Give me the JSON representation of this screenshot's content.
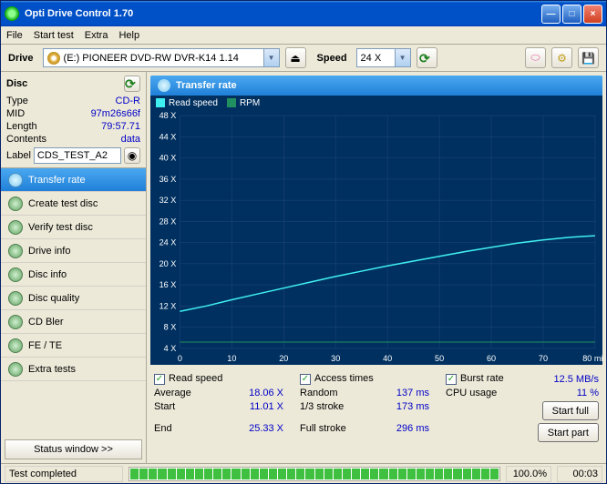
{
  "window": {
    "title": "Opti Drive Control 1.70"
  },
  "menu": {
    "file": "File",
    "start": "Start test",
    "extra": "Extra",
    "help": "Help"
  },
  "toolbar": {
    "drive_label": "Drive",
    "drive_value": "(E:)   PIONEER  DVD-RW   DVR-K14 1.14",
    "speed_label": "Speed",
    "speed_value": "24 X"
  },
  "disc": {
    "header": "Disc",
    "type_label": "Type",
    "type_value": "CD-R",
    "mid_label": "MID",
    "mid_value": "97m26s66f",
    "length_label": "Length",
    "length_value": "79:57.71",
    "contents_label": "Contents",
    "contents_value": "data",
    "label_label": "Label",
    "label_value": "CDS_TEST_A2"
  },
  "nav": {
    "items": [
      "Transfer rate",
      "Create test disc",
      "Verify test disc",
      "Drive info",
      "Disc info",
      "Disc quality",
      "CD Bler",
      "FE / TE",
      "Extra tests"
    ],
    "statuswin": "Status window >>"
  },
  "panel": {
    "title": "Transfer rate",
    "legend_read": "Read speed",
    "legend_rpm": "RPM"
  },
  "chart": {
    "type": "line",
    "x_axis": {
      "min": 0,
      "max": 80,
      "step": 10,
      "label_suffix": " min"
    },
    "y_axis": {
      "min": 4,
      "max": 48,
      "step": 4,
      "label_suffix": " X"
    },
    "background_color": "#003060",
    "grid_color": "#204878",
    "axis_text_color": "#ffffff",
    "series": [
      {
        "name": "Read speed",
        "color": "#40f0f0",
        "line_width": 1.5,
        "points": [
          [
            0,
            11.0
          ],
          [
            5,
            12.0
          ],
          [
            10,
            13.2
          ],
          [
            15,
            14.3
          ],
          [
            20,
            15.4
          ],
          [
            25,
            16.5
          ],
          [
            30,
            17.6
          ],
          [
            35,
            18.6
          ],
          [
            40,
            19.6
          ],
          [
            45,
            20.5
          ],
          [
            50,
            21.4
          ],
          [
            55,
            22.3
          ],
          [
            60,
            23.1
          ],
          [
            65,
            23.9
          ],
          [
            70,
            24.5
          ],
          [
            75,
            25.0
          ],
          [
            80,
            25.3
          ]
        ]
      },
      {
        "name": "RPM",
        "color": "#209060",
        "line_width": 1,
        "points": [
          [
            0,
            5.2
          ],
          [
            80,
            5.2
          ]
        ]
      }
    ]
  },
  "checks": {
    "read_speed": "Read speed",
    "access_times": "Access times",
    "burst_rate": "Burst rate",
    "burst_rate_value": "12.5 MB/s"
  },
  "stats": {
    "average_label": "Average",
    "average_value": "18.06 X",
    "start_label": "Start",
    "start_value": "11.01 X",
    "end_label": "End",
    "end_value": "25.33 X",
    "random_label": "Random",
    "random_value": "137 ms",
    "third_label": "1/3 stroke",
    "third_value": "173 ms",
    "full_label": "Full stroke",
    "full_value": "296 ms",
    "cpu_label": "CPU usage",
    "cpu_value": "11 %"
  },
  "buttons": {
    "start_full": "Start full",
    "start_part": "Start part"
  },
  "status": {
    "text": "Test completed",
    "percent": "100.0%",
    "time": "00:03",
    "progress_pct": 100
  }
}
